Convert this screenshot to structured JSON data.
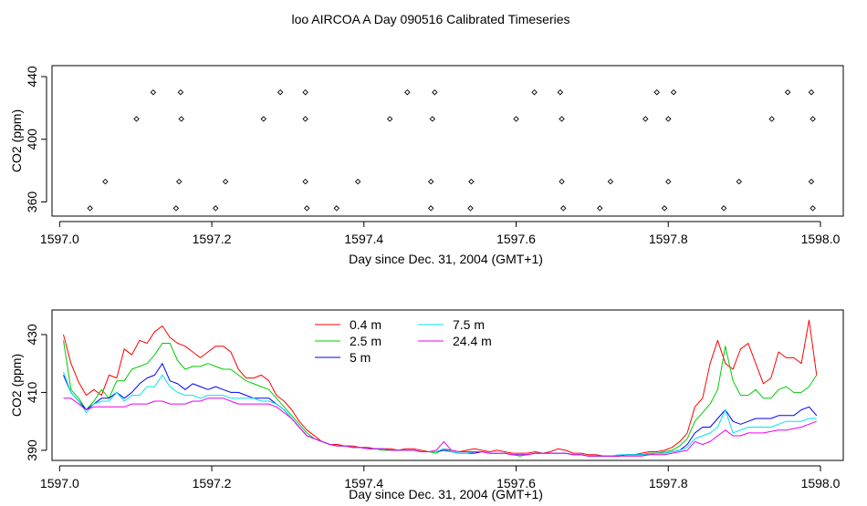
{
  "title": "loo AIRCOA A  Day 090516  Calibrated Timeseries",
  "colors": {
    "0.4 m": "#ff0000",
    "2.5 m": "#00cc00",
    "5 m": "#0000ff",
    "7.5 m": "#00e5ee",
    "24.4 m": "#ee00ee",
    "frame": "#000000",
    "points": "#000000"
  },
  "chart_data": [
    {
      "type": "scatter",
      "xlabel": "Day since Dec. 31, 2004 (GMT+1)",
      "ylabel": "CO2 (ppm)",
      "xlim": [
        1596.99,
        1598.03
      ],
      "ylim": [
        351,
        447
      ],
      "xticks": [
        1597.0,
        1597.2,
        1597.4,
        1597.6,
        1597.8,
        1598.0
      ],
      "xtick_labels": [
        "1597.0",
        "1597.2",
        "1597.4",
        "1597.6",
        "1597.8",
        "1598.0"
      ],
      "yticks": [
        360,
        400,
        440
      ],
      "ytick_labels": [
        "360",
        "400",
        "440"
      ],
      "grid": false,
      "legend": null,
      "series": [
        {
          "name": "",
          "marker": "open-diamond",
          "x": [
            1597.04,
            1597.153,
            1597.205,
            1597.325,
            1597.364,
            1597.488,
            1597.54,
            1597.662,
            1597.71,
            1597.795,
            1597.873,
            1597.99,
            1597.06,
            1597.157,
            1597.218,
            1597.323,
            1597.392,
            1597.488,
            1597.541,
            1597.66,
            1597.724,
            1597.8,
            1597.893,
            1597.988,
            1597.101,
            1597.16,
            1597.268,
            1597.323,
            1597.434,
            1597.49,
            1597.6,
            1597.66,
            1597.77,
            1597.8,
            1597.936,
            1597.99,
            1597.123,
            1597.159,
            1597.29,
            1597.323,
            1597.457,
            1597.493,
            1597.624,
            1597.658,
            1597.785,
            1597.807,
            1597.957,
            1597.988
          ],
          "y": [
            356,
            356,
            356,
            356,
            356,
            356,
            356,
            356,
            356,
            356,
            356,
            356,
            373,
            373,
            373,
            373,
            373,
            373,
            373,
            373,
            373,
            373,
            373,
            373,
            413,
            413,
            413,
            413,
            413,
            413,
            413,
            413,
            413,
            413,
            413,
            413,
            430,
            430,
            430,
            430,
            430,
            430,
            430,
            430,
            430,
            430,
            430,
            430
          ]
        }
      ]
    },
    {
      "type": "line",
      "xlabel": "Day since Dec. 31, 2004 (GMT+1)",
      "ylabel": "CO2 (ppm)",
      "xlim": [
        1596.99,
        1598.03
      ],
      "ylim": [
        386.5,
        438.5
      ],
      "xticks": [
        1597.0,
        1597.2,
        1597.4,
        1597.6,
        1597.8,
        1598.0
      ],
      "xtick_labels": [
        "1597.0",
        "1597.2",
        "1597.4",
        "1597.6",
        "1597.8",
        "1598.0"
      ],
      "yticks": [
        390,
        410,
        430
      ],
      "ytick_labels": [
        "390",
        "410",
        "430"
      ],
      "grid": false,
      "legend": "top-center",
      "x": [
        1597.005,
        1597.015,
        1597.025,
        1597.035,
        1597.045,
        1597.055,
        1597.065,
        1597.075,
        1597.085,
        1597.095,
        1597.105,
        1597.115,
        1597.125,
        1597.135,
        1597.145,
        1597.155,
        1597.165,
        1597.175,
        1597.185,
        1597.195,
        1597.205,
        1597.215,
        1597.225,
        1597.235,
        1597.245,
        1597.255,
        1597.265,
        1597.275,
        1597.285,
        1597.295,
        1597.305,
        1597.315,
        1597.325,
        1597.335,
        1597.345,
        1597.355,
        1597.365,
        1597.375,
        1597.385,
        1597.395,
        1597.405,
        1597.415,
        1597.425,
        1597.435,
        1597.445,
        1597.455,
        1597.465,
        1597.475,
        1597.485,
        1597.495,
        1597.505,
        1597.515,
        1597.525,
        1597.535,
        1597.545,
        1597.555,
        1597.565,
        1597.575,
        1597.585,
        1597.595,
        1597.605,
        1597.615,
        1597.625,
        1597.635,
        1597.645,
        1597.655,
        1597.665,
        1597.675,
        1597.685,
        1597.695,
        1597.705,
        1597.715,
        1597.725,
        1597.735,
        1597.745,
        1597.755,
        1597.765,
        1597.775,
        1597.785,
        1597.795,
        1597.805,
        1597.815,
        1597.825,
        1597.835,
        1597.845,
        1597.855,
        1597.865,
        1597.875,
        1597.885,
        1597.895,
        1597.905,
        1597.915,
        1597.925,
        1597.935,
        1597.945,
        1597.955,
        1597.965,
        1597.975,
        1597.985,
        1597.995
      ],
      "series": [
        {
          "name": "0.4 m",
          "values": [
            430.0,
            420.0,
            413.5,
            409.0,
            411.0,
            409.0,
            416.0,
            415.0,
            425.0,
            423.0,
            428.0,
            427.0,
            431.0,
            433.0,
            429.0,
            427.0,
            426.0,
            424.0,
            422.0,
            424.0,
            426.0,
            426.0,
            424.0,
            418.0,
            415.0,
            415.0,
            416.0,
            414.0,
            409.0,
            407.0,
            404.0,
            400.0,
            397.0,
            395.0,
            393.0,
            392.0,
            392.0,
            391.5,
            391.5,
            391.0,
            391.0,
            390.5,
            390.5,
            390.5,
            390.0,
            390.5,
            390.5,
            390.0,
            389.5,
            389.5,
            390.5,
            390.0,
            389.5,
            390.0,
            390.5,
            390.0,
            389.5,
            390.0,
            389.5,
            389.0,
            389.0,
            389.0,
            389.5,
            389.0,
            389.5,
            390.5,
            390.0,
            389.0,
            389.0,
            388.5,
            388.5,
            388.0,
            388.0,
            388.0,
            388.5,
            388.5,
            389.0,
            389.5,
            389.5,
            390.0,
            391.0,
            393.0,
            396.0,
            405.0,
            408.0,
            420.0,
            428.0,
            420.0,
            418.0,
            425.0,
            427.0,
            420.0,
            413.0,
            415.0,
            424.0,
            422.0,
            422.0,
            420.0,
            435.0,
            416.0
          ]
        },
        {
          "name": "2.5 m",
          "values": [
            428.0,
            411.0,
            408.0,
            404.0,
            407.0,
            411.0,
            408.0,
            414.0,
            414.0,
            418.0,
            419.0,
            420.0,
            423.0,
            427.0,
            427.0,
            421.0,
            418.0,
            419.0,
            419.0,
            420.0,
            419.0,
            418.0,
            418.0,
            416.0,
            414.0,
            413.0,
            412.0,
            411.0,
            408.0,
            405.0,
            402.0,
            399.0,
            396.0,
            394.0,
            393.0,
            392.0,
            391.5,
            391.5,
            391.0,
            391.0,
            390.5,
            390.5,
            390.0,
            390.0,
            390.0,
            390.0,
            390.0,
            389.5,
            389.5,
            389.0,
            390.5,
            389.5,
            389.0,
            389.0,
            389.5,
            389.5,
            389.0,
            389.0,
            389.0,
            388.5,
            388.0,
            388.5,
            389.0,
            389.0,
            389.0,
            389.0,
            389.0,
            388.5,
            388.5,
            388.0,
            388.0,
            388.0,
            388.0,
            388.0,
            388.5,
            388.5,
            388.5,
            389.0,
            389.0,
            389.5,
            390.0,
            391.5,
            394.0,
            400.0,
            403.0,
            406.0,
            411.0,
            426.0,
            414.0,
            409.0,
            409.0,
            411.0,
            408.0,
            408.0,
            411.0,
            412.0,
            410.0,
            410.0,
            412.0,
            416.0
          ]
        },
        {
          "name": "5 m",
          "values": [
            416.0,
            410.0,
            407.0,
            404.0,
            406.0,
            408.0,
            408.0,
            410.0,
            408.0,
            410.0,
            413.0,
            415.0,
            416.0,
            420.0,
            414.0,
            413.0,
            411.0,
            413.0,
            412.0,
            411.0,
            412.0,
            411.0,
            410.0,
            410.0,
            409.0,
            408.0,
            408.0,
            408.0,
            406.0,
            404.0,
            401.0,
            398.0,
            395.0,
            394.0,
            393.0,
            392.0,
            391.5,
            391.5,
            391.0,
            391.0,
            390.5,
            390.5,
            390.5,
            390.0,
            390.0,
            390.0,
            390.0,
            389.5,
            389.5,
            389.5,
            390.0,
            389.5,
            389.0,
            389.0,
            389.0,
            389.5,
            389.0,
            389.0,
            389.0,
            388.5,
            388.5,
            388.5,
            389.0,
            389.0,
            389.0,
            389.0,
            389.0,
            388.5,
            388.5,
            388.0,
            388.0,
            388.0,
            388.0,
            388.0,
            388.5,
            388.5,
            388.5,
            388.5,
            389.0,
            389.0,
            389.5,
            390.0,
            392.0,
            396.0,
            398.0,
            398.0,
            401.0,
            404.0,
            400.0,
            399.0,
            400.0,
            401.0,
            401.0,
            401.0,
            402.0,
            402.0,
            402.0,
            404.0,
            405.0,
            402.0
          ]
        },
        {
          "name": "7.5 m",
          "values": [
            417.0,
            410.0,
            407.0,
            403.0,
            406.0,
            407.0,
            407.0,
            410.0,
            407.0,
            409.0,
            409.0,
            412.0,
            412.0,
            416.0,
            412.0,
            410.0,
            409.0,
            409.0,
            408.0,
            409.0,
            409.0,
            409.0,
            408.0,
            408.0,
            408.0,
            408.0,
            407.0,
            407.0,
            406.0,
            404.0,
            401.0,
            398.0,
            395.0,
            394.0,
            393.0,
            392.0,
            391.5,
            391.5,
            391.0,
            391.0,
            390.5,
            390.5,
            390.5,
            390.0,
            390.0,
            390.0,
            390.0,
            389.5,
            389.5,
            389.5,
            390.5,
            389.5,
            389.0,
            389.0,
            389.5,
            389.5,
            389.0,
            389.0,
            389.0,
            388.5,
            388.5,
            388.5,
            389.0,
            389.0,
            389.0,
            389.0,
            389.0,
            388.5,
            388.5,
            388.0,
            388.0,
            388.0,
            388.0,
            388.5,
            388.5,
            388.5,
            388.5,
            388.5,
            389.0,
            389.0,
            389.5,
            390.0,
            391.0,
            394.0,
            395.0,
            396.0,
            398.0,
            404.0,
            396.0,
            397.0,
            398.0,
            398.0,
            398.0,
            398.0,
            399.0,
            400.0,
            400.0,
            400.0,
            401.0,
            401.0
          ]
        },
        {
          "name": "24.4 m",
          "values": [
            408.0,
            408.0,
            406.0,
            404.0,
            405.0,
            405.0,
            405.0,
            405.0,
            405.0,
            406.0,
            406.0,
            406.0,
            407.0,
            407.0,
            406.0,
            406.0,
            406.0,
            407.0,
            407.0,
            408.0,
            408.0,
            408.0,
            407.0,
            406.0,
            406.0,
            406.0,
            406.0,
            406.0,
            405.0,
            403.0,
            401.0,
            398.0,
            395.0,
            394.0,
            393.0,
            392.0,
            391.5,
            391.5,
            391.0,
            391.0,
            390.5,
            390.5,
            390.5,
            390.0,
            390.0,
            390.0,
            390.0,
            389.5,
            389.5,
            390.0,
            393.0,
            390.0,
            389.5,
            389.5,
            389.5,
            389.5,
            389.0,
            389.0,
            389.0,
            388.5,
            388.5,
            388.5,
            389.0,
            389.0,
            389.0,
            389.0,
            389.0,
            388.5,
            388.5,
            388.0,
            388.0,
            388.0,
            388.0,
            388.0,
            388.0,
            388.0,
            388.0,
            388.5,
            388.5,
            388.5,
            389.0,
            389.5,
            390.0,
            393.0,
            392.0,
            393.0,
            395.0,
            397.0,
            395.0,
            395.0,
            396.0,
            396.0,
            396.0,
            396.5,
            397.0,
            397.0,
            397.5,
            398.0,
            399.0,
            400.0
          ]
        }
      ]
    }
  ]
}
